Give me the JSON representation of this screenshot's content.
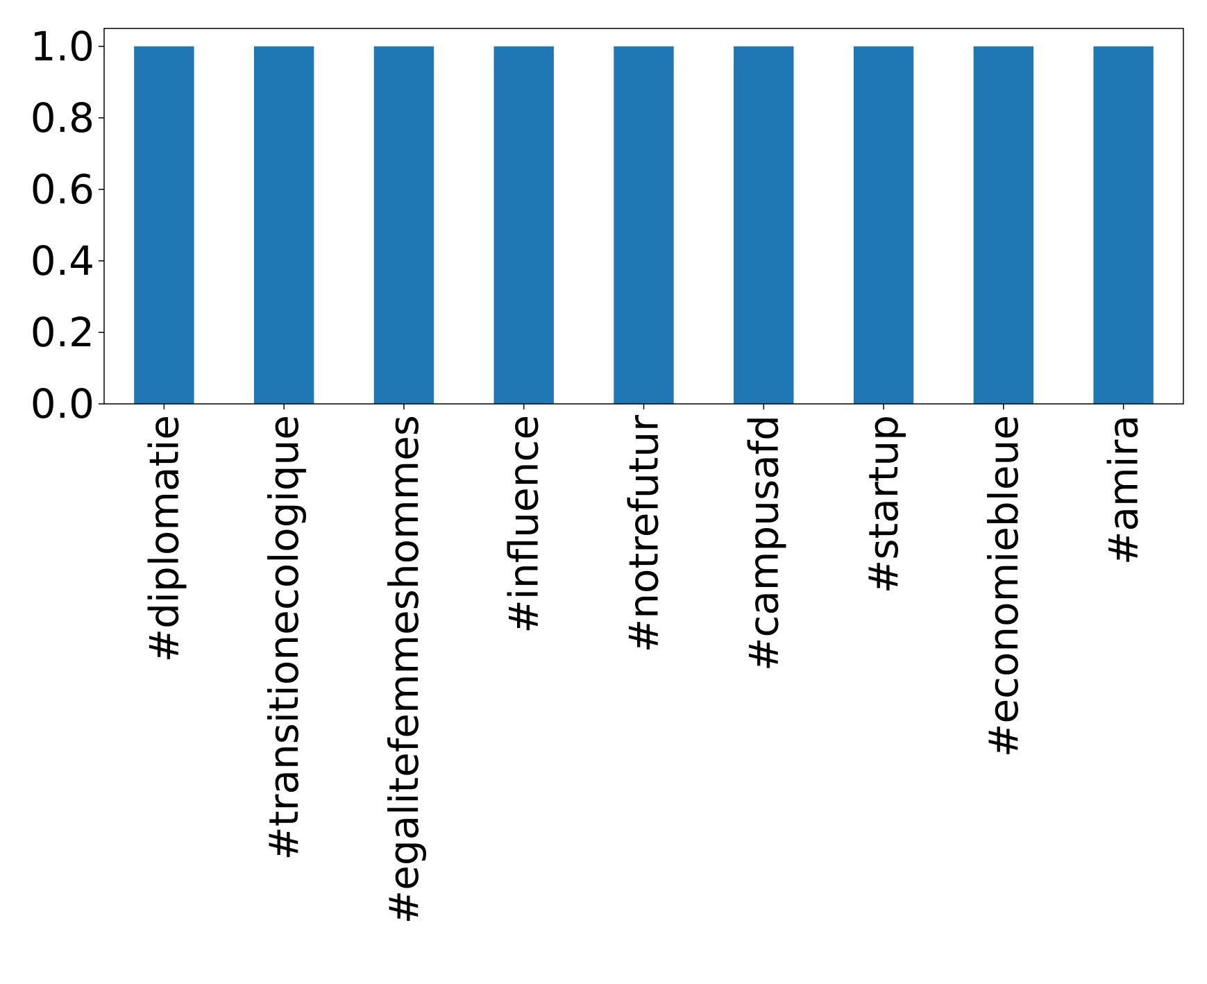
{
  "chart_data": {
    "type": "bar",
    "title": "",
    "xlabel": "",
    "ylabel": "",
    "categories": [
      "#diplomatie",
      "#transitionecologique",
      "#egalitefemmeshommes",
      "#influence",
      "#notrefutur",
      "#campusafd",
      "#startup",
      "#economiebleue",
      "#amira"
    ],
    "values": [
      1.0,
      1.0,
      1.0,
      1.0,
      1.0,
      1.0,
      1.0,
      1.0,
      1.0
    ],
    "ylim": [
      0,
      1.05
    ],
    "yticks": [
      "0.0",
      "0.2",
      "0.4",
      "0.6",
      "0.8",
      "1.0"
    ],
    "grid": false,
    "legend": "none",
    "colors": {
      "bar": "#1f77b4",
      "axis": "#000000",
      "background": "#ffffff"
    }
  }
}
